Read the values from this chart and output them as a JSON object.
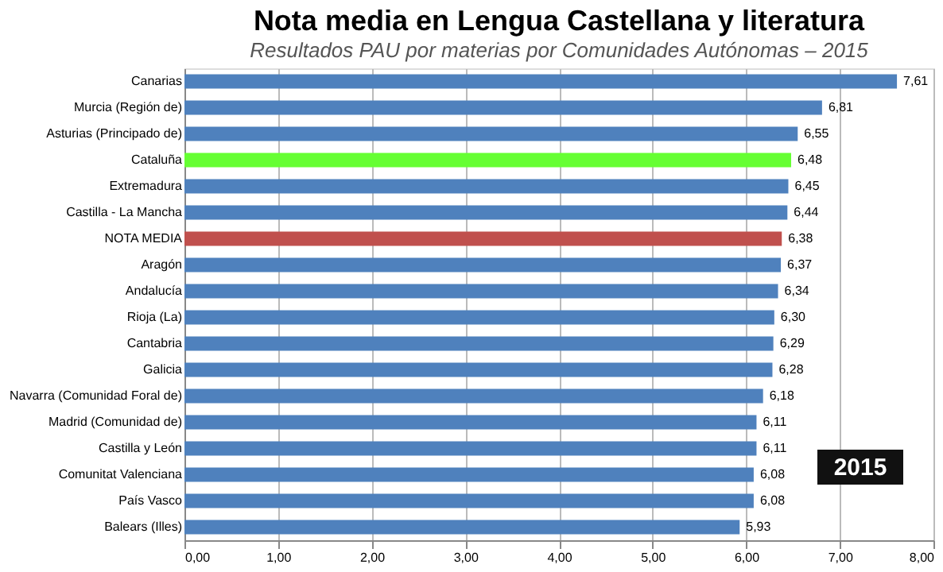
{
  "chart_data": {
    "type": "bar",
    "orientation": "horizontal",
    "title": "Nota media en Lengua Castellana y literatura",
    "subtitle": "Resultados PAU por materias por Comunidades Autónomas – 2015",
    "categories": [
      "Canarias",
      "Murcia (Región de)",
      "Asturias (Principado de)",
      "Cataluña",
      "Extremadura",
      "Castilla - La Mancha",
      "NOTA MEDIA",
      "Aragón",
      "Andalucía",
      "Rioja (La)",
      "Cantabria",
      "Galicia",
      "Navarra (Comunidad Foral de)",
      "Madrid (Comunidad de)",
      "Castilla y León",
      "Comunitat Valenciana",
      "País Vasco",
      "Balears (Illes)"
    ],
    "values": [
      7.61,
      6.81,
      6.55,
      6.48,
      6.45,
      6.44,
      6.38,
      6.37,
      6.34,
      6.3,
      6.29,
      6.28,
      6.18,
      6.11,
      6.11,
      6.08,
      6.08,
      5.93
    ],
    "value_labels": [
      "7,61",
      "6,81",
      "6,55",
      "6,48",
      "6,45",
      "6,44",
      "6,38",
      "6,37",
      "6,34",
      "6,30",
      "6,29",
      "6,28",
      "6,18",
      "6,11",
      "6,11",
      "6,08",
      "6,08",
      "5,93"
    ],
    "colors": [
      "#4f81bd",
      "#4f81bd",
      "#4f81bd",
      "#66ff33",
      "#4f81bd",
      "#4f81bd",
      "#c0504d",
      "#4f81bd",
      "#4f81bd",
      "#4f81bd",
      "#4f81bd",
      "#4f81bd",
      "#4f81bd",
      "#4f81bd",
      "#4f81bd",
      "#4f81bd",
      "#4f81bd",
      "#4f81bd"
    ],
    "xlim": [
      0,
      8
    ],
    "xticks": [
      {
        "value": 0,
        "label": "0,00"
      },
      {
        "value": 1,
        "label": "1,00"
      },
      {
        "value": 2,
        "label": "2,00"
      },
      {
        "value": 3,
        "label": "3,00"
      },
      {
        "value": 4,
        "label": "4,00"
      },
      {
        "value": 5,
        "label": "5,00"
      },
      {
        "value": 6,
        "label": "6,00"
      },
      {
        "value": 7,
        "label": "7,00"
      },
      {
        "value": 8,
        "label": "8,00"
      }
    ],
    "grid": "x",
    "legend": false,
    "annotations": [
      "2015"
    ]
  }
}
